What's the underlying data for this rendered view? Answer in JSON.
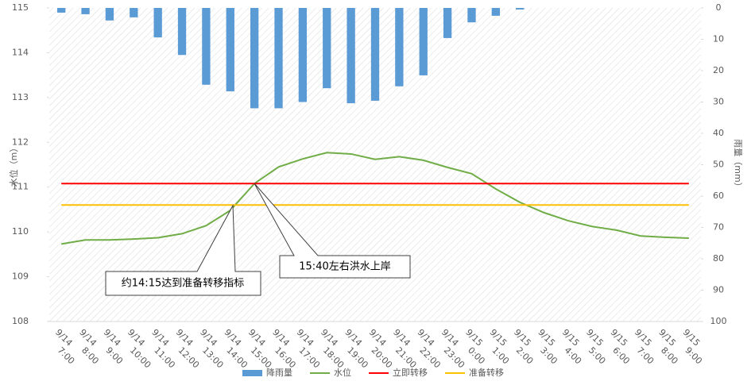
{
  "chart_data": {
    "type": "bar_line",
    "y_axis_label": "水位（m）",
    "y2_axis_label": "雨量（mm）",
    "categories": [
      "9/14 7:00",
      "9/14 8:00",
      "9/14 9:00",
      "9/14 10:00",
      "9/14 11:00",
      "9/14 12:00",
      "9/14 13:00",
      "9/14 14:00",
      "9/14 15:00",
      "9/14 16:00",
      "9/14 17:00",
      "9/14 18:00",
      "9/14 19:00",
      "9/14 20:00",
      "9/14 21:00",
      "9/14 22:00",
      "9/14 23:00",
      "9/15 0:00",
      "9/15 1:00",
      "9/15 2:00",
      "9/15 3:00",
      "9/15 4:00",
      "9/15 5:00",
      "9/15 6:00",
      "9/15 7:00",
      "9/15 8:00",
      "9/15 9:00"
    ],
    "series": [
      {
        "name": "降雨量",
        "type": "bar",
        "axis": "y2",
        "color": "#5b9bd5",
        "values": [
          1.5,
          2,
          4,
          3,
          9.4,
          15,
          24.5,
          26.6,
          32,
          32,
          30,
          25.6,
          30.4,
          29.6,
          25,
          21.5,
          9.6,
          4.6,
          2.5,
          0.5,
          0,
          0,
          0,
          0,
          0,
          0,
          0
        ]
      },
      {
        "name": "水位",
        "type": "line",
        "color": "#70ad47",
        "values": [
          109.73,
          109.82,
          109.82,
          109.84,
          109.87,
          109.96,
          110.14,
          110.48,
          111.08,
          111.45,
          111.63,
          111.77,
          111.74,
          111.62,
          111.68,
          111.6,
          111.44,
          111.3,
          110.96,
          110.66,
          110.43,
          110.25,
          110.12,
          110.04,
          109.91,
          109.88,
          109.86
        ]
      },
      {
        "name": "立即转移",
        "type": "line",
        "color": "#ff0000",
        "values": [
          111.08,
          111.08,
          111.08,
          111.08,
          111.08,
          111.08,
          111.08,
          111.08,
          111.08,
          111.08,
          111.08,
          111.08,
          111.08,
          111.08,
          111.08,
          111.08,
          111.08,
          111.08,
          111.08,
          111.08,
          111.08,
          111.08,
          111.08,
          111.08,
          111.08,
          111.08,
          111.08
        ]
      },
      {
        "name": "准备转移",
        "type": "line",
        "color": "#ffc000",
        "values": [
          110.6,
          110.6,
          110.6,
          110.6,
          110.6,
          110.6,
          110.6,
          110.6,
          110.6,
          110.6,
          110.6,
          110.6,
          110.6,
          110.6,
          110.6,
          110.6,
          110.6,
          110.6,
          110.6,
          110.6,
          110.6,
          110.6,
          110.6,
          110.6,
          110.6,
          110.6,
          110.6
        ]
      }
    ],
    "ylim": [
      108,
      115
    ],
    "yticks": [
      108,
      109,
      110,
      111,
      112,
      113,
      114,
      115
    ],
    "y2lim": [
      0,
      100
    ],
    "y2ticks": [
      0,
      10,
      20,
      30,
      40,
      50,
      60,
      70,
      80,
      90,
      100
    ],
    "y2_inverted": true,
    "annotations": [
      "约14:15达到准备转移指标",
      "15:40左右洪水上岸"
    ],
    "legend": "bottom"
  }
}
